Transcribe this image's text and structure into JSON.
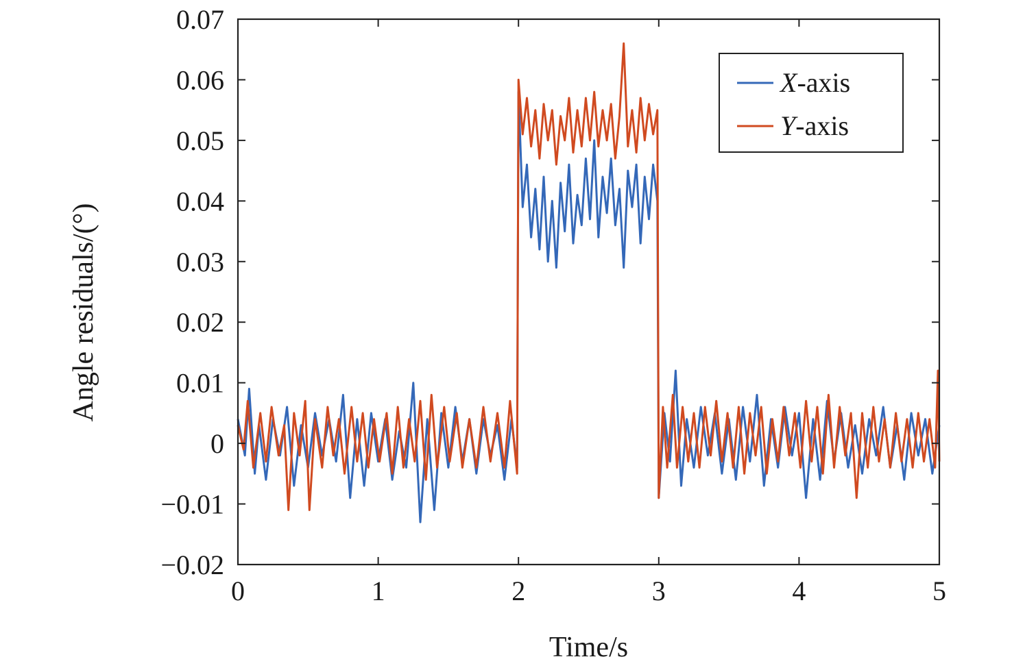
{
  "chart_data": {
    "type": "line",
    "xlabel": "Time/s",
    "ylabel": "Angle residuals/(°)",
    "xlim": [
      0,
      5
    ],
    "ylim": [
      -0.02,
      0.07
    ],
    "x_ticks": [
      0,
      1,
      2,
      3,
      4,
      5
    ],
    "x_tick_labels": [
      "0",
      "1",
      "2",
      "3",
      "4",
      "5"
    ],
    "y_ticks": [
      -0.02,
      -0.01,
      0,
      0.01,
      0.02,
      0.03,
      0.04,
      0.05,
      0.06,
      0.07
    ],
    "y_tick_labels": [
      "−0.02",
      "−0.01",
      "0",
      "0.01",
      "0.02",
      "0.03",
      "0.04",
      "0.05",
      "0.06",
      "0.07"
    ],
    "grid": false,
    "legend_position": "top-right",
    "series": [
      {
        "name": "X-axis",
        "name_italic": "X",
        "name_rest": "-axis",
        "color": "#3468b8",
        "points": [
          [
            0.0,
            0.004
          ],
          [
            0.05,
            -0.002
          ],
          [
            0.08,
            0.009
          ],
          [
            0.12,
            -0.005
          ],
          [
            0.15,
            0.003
          ],
          [
            0.2,
            -0.006
          ],
          [
            0.25,
            0.004
          ],
          [
            0.3,
            -0.002
          ],
          [
            0.35,
            0.006
          ],
          [
            0.4,
            -0.007
          ],
          [
            0.45,
            0.003
          ],
          [
            0.5,
            -0.004
          ],
          [
            0.55,
            0.005
          ],
          [
            0.6,
            -0.002
          ],
          [
            0.65,
            0.004
          ],
          [
            0.7,
            -0.003
          ],
          [
            0.75,
            0.008
          ],
          [
            0.8,
            -0.009
          ],
          [
            0.85,
            0.004
          ],
          [
            0.9,
            -0.007
          ],
          [
            0.95,
            0.005
          ],
          [
            1.0,
            -0.003
          ],
          [
            1.05,
            0.004
          ],
          [
            1.1,
            -0.006
          ],
          [
            1.15,
            0.002
          ],
          [
            1.2,
            -0.004
          ],
          [
            1.25,
            0.01
          ],
          [
            1.3,
            -0.013
          ],
          [
            1.35,
            0.004
          ],
          [
            1.4,
            -0.011
          ],
          [
            1.45,
            0.005
          ],
          [
            1.5,
            -0.004
          ],
          [
            1.55,
            0.006
          ],
          [
            1.6,
            -0.003
          ],
          [
            1.65,
            0.004
          ],
          [
            1.7,
            -0.005
          ],
          [
            1.75,
            0.004
          ],
          [
            1.8,
            -0.002
          ],
          [
            1.85,
            0.003
          ],
          [
            1.9,
            -0.006
          ],
          [
            1.95,
            0.004
          ],
          [
            1.99,
            -0.004
          ],
          [
            2.0,
            0.058
          ],
          [
            2.03,
            0.039
          ],
          [
            2.06,
            0.046
          ],
          [
            2.09,
            0.034
          ],
          [
            2.12,
            0.042
          ],
          [
            2.15,
            0.032
          ],
          [
            2.18,
            0.044
          ],
          [
            2.21,
            0.03
          ],
          [
            2.24,
            0.04
          ],
          [
            2.27,
            0.029
          ],
          [
            2.3,
            0.043
          ],
          [
            2.33,
            0.035
          ],
          [
            2.36,
            0.046
          ],
          [
            2.39,
            0.033
          ],
          [
            2.42,
            0.041
          ],
          [
            2.45,
            0.036
          ],
          [
            2.48,
            0.047
          ],
          [
            2.51,
            0.037
          ],
          [
            2.54,
            0.05
          ],
          [
            2.57,
            0.034
          ],
          [
            2.6,
            0.044
          ],
          [
            2.63,
            0.038
          ],
          [
            2.66,
            0.047
          ],
          [
            2.69,
            0.036
          ],
          [
            2.72,
            0.042
          ],
          [
            2.75,
            0.029
          ],
          [
            2.78,
            0.045
          ],
          [
            2.81,
            0.039
          ],
          [
            2.84,
            0.046
          ],
          [
            2.87,
            0.033
          ],
          [
            2.9,
            0.044
          ],
          [
            2.93,
            0.037
          ],
          [
            2.96,
            0.046
          ],
          [
            2.99,
            0.04
          ],
          [
            3.0,
            -0.009
          ],
          [
            3.04,
            0.005
          ],
          [
            3.08,
            -0.003
          ],
          [
            3.12,
            0.012
          ],
          [
            3.16,
            -0.007
          ],
          [
            3.2,
            0.004
          ],
          [
            3.25,
            -0.004
          ],
          [
            3.3,
            0.006
          ],
          [
            3.35,
            -0.002
          ],
          [
            3.4,
            0.005
          ],
          [
            3.45,
            -0.005
          ],
          [
            3.5,
            0.004
          ],
          [
            3.55,
            -0.006
          ],
          [
            3.6,
            0.006
          ],
          [
            3.65,
            -0.003
          ],
          [
            3.7,
            0.008
          ],
          [
            3.75,
            -0.007
          ],
          [
            3.8,
            0.004
          ],
          [
            3.85,
            -0.004
          ],
          [
            3.9,
            0.006
          ],
          [
            3.95,
            -0.002
          ],
          [
            4.0,
            0.005
          ],
          [
            4.05,
            -0.009
          ],
          [
            4.1,
            0.004
          ],
          [
            4.15,
            -0.006
          ],
          [
            4.2,
            0.007
          ],
          [
            4.25,
            -0.003
          ],
          [
            4.3,
            0.005
          ],
          [
            4.35,
            -0.004
          ],
          [
            4.4,
            0.003
          ],
          [
            4.45,
            -0.005
          ],
          [
            4.5,
            0.004
          ],
          [
            4.55,
            -0.002
          ],
          [
            4.6,
            0.006
          ],
          [
            4.65,
            -0.004
          ],
          [
            4.7,
            0.003
          ],
          [
            4.75,
            -0.006
          ],
          [
            4.8,
            0.005
          ],
          [
            4.85,
            -0.002
          ],
          [
            4.9,
            0.004
          ],
          [
            4.95,
            -0.005
          ],
          [
            5.0,
            0.003
          ]
        ]
      },
      {
        "name": "Y-axis",
        "name_italic": "Y",
        "name_rest": "-axis",
        "color": "#d04a20",
        "points": [
          [
            0.0,
            0.003
          ],
          [
            0.04,
            -0.001
          ],
          [
            0.07,
            0.007
          ],
          [
            0.11,
            -0.004
          ],
          [
            0.16,
            0.005
          ],
          [
            0.2,
            -0.003
          ],
          [
            0.24,
            0.006
          ],
          [
            0.29,
            -0.002
          ],
          [
            0.33,
            0.003
          ],
          [
            0.36,
            -0.011
          ],
          [
            0.4,
            0.005
          ],
          [
            0.44,
            -0.002
          ],
          [
            0.48,
            0.007
          ],
          [
            0.51,
            -0.011
          ],
          [
            0.55,
            0.004
          ],
          [
            0.6,
            -0.004
          ],
          [
            0.64,
            0.006
          ],
          [
            0.68,
            -0.002
          ],
          [
            0.72,
            0.004
          ],
          [
            0.76,
            -0.005
          ],
          [
            0.81,
            0.006
          ],
          [
            0.85,
            -0.003
          ],
          [
            0.89,
            0.005
          ],
          [
            0.93,
            -0.004
          ],
          [
            0.97,
            0.004
          ],
          [
            1.01,
            -0.003
          ],
          [
            1.06,
            0.005
          ],
          [
            1.1,
            -0.005
          ],
          [
            1.14,
            0.006
          ],
          [
            1.18,
            -0.004
          ],
          [
            1.22,
            0.004
          ],
          [
            1.26,
            -0.003
          ],
          [
            1.3,
            0.007
          ],
          [
            1.34,
            -0.006
          ],
          [
            1.38,
            0.008
          ],
          [
            1.42,
            -0.004
          ],
          [
            1.47,
            0.006
          ],
          [
            1.51,
            -0.003
          ],
          [
            1.56,
            0.005
          ],
          [
            1.6,
            -0.004
          ],
          [
            1.65,
            0.004
          ],
          [
            1.7,
            -0.004
          ],
          [
            1.75,
            0.006
          ],
          [
            1.8,
            -0.003
          ],
          [
            1.85,
            0.005
          ],
          [
            1.9,
            -0.004
          ],
          [
            1.94,
            0.007
          ],
          [
            1.99,
            -0.005
          ],
          [
            2.0,
            0.06
          ],
          [
            2.03,
            0.051
          ],
          [
            2.06,
            0.057
          ],
          [
            2.09,
            0.049
          ],
          [
            2.12,
            0.055
          ],
          [
            2.15,
            0.047
          ],
          [
            2.18,
            0.056
          ],
          [
            2.21,
            0.05
          ],
          [
            2.24,
            0.055
          ],
          [
            2.27,
            0.046
          ],
          [
            2.3,
            0.054
          ],
          [
            2.33,
            0.05
          ],
          [
            2.36,
            0.057
          ],
          [
            2.39,
            0.048
          ],
          [
            2.42,
            0.055
          ],
          [
            2.45,
            0.049
          ],
          [
            2.48,
            0.057
          ],
          [
            2.51,
            0.05
          ],
          [
            2.54,
            0.058
          ],
          [
            2.57,
            0.049
          ],
          [
            2.6,
            0.055
          ],
          [
            2.63,
            0.05
          ],
          [
            2.66,
            0.056
          ],
          [
            2.69,
            0.047
          ],
          [
            2.72,
            0.054
          ],
          [
            2.75,
            0.066
          ],
          [
            2.78,
            0.049
          ],
          [
            2.81,
            0.055
          ],
          [
            2.84,
            0.048
          ],
          [
            2.87,
            0.057
          ],
          [
            2.9,
            0.05
          ],
          [
            2.93,
            0.056
          ],
          [
            2.96,
            0.051
          ],
          [
            2.99,
            0.055
          ],
          [
            3.0,
            -0.009
          ],
          [
            3.03,
            0.006
          ],
          [
            3.06,
            -0.004
          ],
          [
            3.1,
            0.008
          ],
          [
            3.13,
            -0.004
          ],
          [
            3.17,
            0.006
          ],
          [
            3.21,
            -0.003
          ],
          [
            3.25,
            0.005
          ],
          [
            3.29,
            -0.004
          ],
          [
            3.33,
            0.006
          ],
          [
            3.37,
            -0.002
          ],
          [
            3.41,
            0.007
          ],
          [
            3.45,
            -0.003
          ],
          [
            3.49,
            0.005
          ],
          [
            3.53,
            -0.004
          ],
          [
            3.57,
            0.006
          ],
          [
            3.61,
            -0.005
          ],
          [
            3.65,
            0.005
          ],
          [
            3.69,
            -0.002
          ],
          [
            3.73,
            0.006
          ],
          [
            3.77,
            -0.005
          ],
          [
            3.81,
            0.004
          ],
          [
            3.85,
            -0.003
          ],
          [
            3.89,
            0.006
          ],
          [
            3.93,
            -0.002
          ],
          [
            3.97,
            0.005
          ],
          [
            4.01,
            -0.004
          ],
          [
            4.05,
            0.007
          ],
          [
            4.09,
            -0.003
          ],
          [
            4.13,
            0.006
          ],
          [
            4.17,
            -0.005
          ],
          [
            4.21,
            0.008
          ],
          [
            4.25,
            -0.004
          ],
          [
            4.29,
            0.006
          ],
          [
            4.33,
            -0.002
          ],
          [
            4.37,
            0.005
          ],
          [
            4.41,
            -0.009
          ],
          [
            4.45,
            0.005
          ],
          [
            4.49,
            -0.004
          ],
          [
            4.53,
            0.006
          ],
          [
            4.57,
            -0.003
          ],
          [
            4.61,
            0.004
          ],
          [
            4.65,
            -0.004
          ],
          [
            4.69,
            0.005
          ],
          [
            4.73,
            -0.003
          ],
          [
            4.77,
            0.004
          ],
          [
            4.81,
            -0.004
          ],
          [
            4.85,
            0.005
          ],
          [
            4.89,
            -0.003
          ],
          [
            4.93,
            0.004
          ],
          [
            4.97,
            -0.004
          ],
          [
            4.99,
            0.012
          ],
          [
            5.0,
            -0.003
          ]
        ]
      }
    ]
  }
}
